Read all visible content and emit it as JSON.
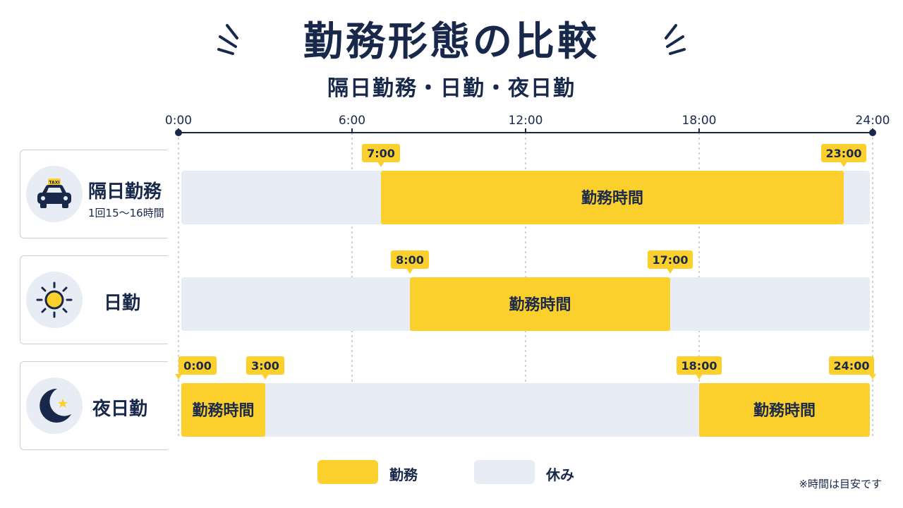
{
  "title": "勤務形態の比較",
  "subtitle": "隔日勤務・日勤・夜日勤",
  "rows": [
    {
      "name": "隔日勤務",
      "sub": "1回15〜16時間",
      "icon": "taxi-icon"
    },
    {
      "name": "日勤",
      "sub": "",
      "icon": "sun-icon"
    },
    {
      "name": "夜日勤",
      "sub": "",
      "icon": "moon-icon"
    }
  ],
  "legend": {
    "work": "勤務",
    "rest": "休み"
  },
  "note": "※時間は目安です",
  "colors": {
    "work": "#fcd02c",
    "rest": "#e8edf5",
    "navy": "#17284b"
  },
  "chart_data": {
    "type": "gantt",
    "x_range": [
      0,
      24
    ],
    "x_ticks": [
      {
        "value": 0,
        "label": "0:00"
      },
      {
        "value": 6,
        "label": "6:00"
      },
      {
        "value": 12,
        "label": "12:00"
      },
      {
        "value": 18,
        "label": "18:00"
      },
      {
        "value": 24,
        "label": "24:00"
      }
    ],
    "bar_text": "勤務時間",
    "rows": [
      {
        "category": "隔日勤務",
        "shifts": [
          {
            "start": 7,
            "end": 23
          }
        ],
        "markers": [
          {
            "value": 7,
            "label": "7:00"
          },
          {
            "value": 23,
            "label": "23:00"
          }
        ]
      },
      {
        "category": "日勤",
        "shifts": [
          {
            "start": 8,
            "end": 17
          }
        ],
        "markers": [
          {
            "value": 8,
            "label": "8:00"
          },
          {
            "value": 17,
            "label": "17:00"
          }
        ]
      },
      {
        "category": "夜日勤",
        "shifts": [
          {
            "start": 0,
            "end": 3
          },
          {
            "start": 18,
            "end": 24
          }
        ],
        "markers": [
          {
            "value": 0,
            "label": "0:00"
          },
          {
            "value": 3,
            "label": "3:00"
          },
          {
            "value": 18,
            "label": "18:00"
          },
          {
            "value": 24,
            "label": "24:00"
          }
        ]
      }
    ]
  }
}
